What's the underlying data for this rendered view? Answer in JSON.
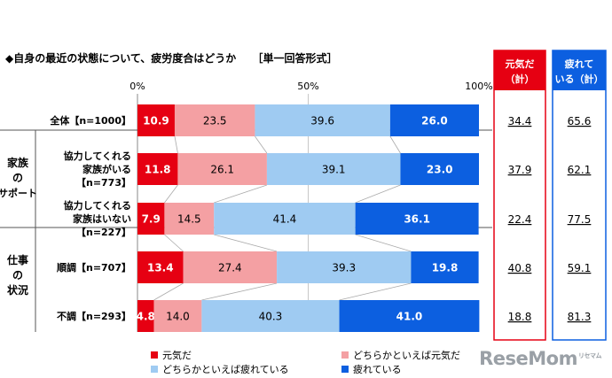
{
  "title": "◆自身の最近の状態について、疲労度合はどうか",
  "subtitle": "［単一回答形式］",
  "axis_ticks": [
    "0%",
    "50%",
    "100%"
  ],
  "summary_headers": {
    "genki": [
      "元気だ",
      "（計）"
    ],
    "tsukare": [
      "疲れて",
      "いる（計）"
    ]
  },
  "group_labels": {
    "family": [
      "家族",
      "の",
      "サポート"
    ],
    "work": [
      "仕事",
      "の",
      "状況"
    ]
  },
  "row_labels": [
    [
      "全体【n=1000】"
    ],
    [
      "協力してくれる",
      "家族がいる",
      "【n=773】"
    ],
    [
      "協力してくれる",
      "家族はいない",
      "【n=227】"
    ],
    [
      "順調【n=707】"
    ],
    [
      "不調【n=293】"
    ]
  ],
  "legend": [
    "元気だ",
    "どちらかといえば元気だ",
    "どちらかといえば疲れている",
    "疲れている"
  ],
  "colors": [
    "#e60012",
    "#f4a0a3",
    "#9fcbf2",
    "#0c5fe0"
  ],
  "chart_data": {
    "type": "bar",
    "stacked": true,
    "orientation": "horizontal",
    "xlim": [
      0,
      100
    ],
    "categories": [
      "全体【n=1000】",
      "協力してくれる家族がいる【n=773】",
      "協力してくれる家族はいない【n=227】",
      "順調【n=707】",
      "不調【n=293】"
    ],
    "series": [
      {
        "name": "元気だ",
        "values": [
          10.9,
          11.8,
          7.9,
          13.4,
          4.8
        ]
      },
      {
        "name": "どちらかといえば元気だ",
        "values": [
          23.5,
          26.1,
          14.5,
          27.4,
          14.0
        ]
      },
      {
        "name": "どちらかといえば疲れている",
        "values": [
          39.6,
          39.1,
          41.4,
          39.3,
          40.3
        ]
      },
      {
        "name": "疲れている",
        "values": [
          26.0,
          23.0,
          36.1,
          19.8,
          41.0
        ]
      }
    ],
    "genki_total": [
      "34.4",
      "37.9",
      "22.4",
      "40.8",
      "18.8"
    ],
    "tsukare_total": [
      "65.6",
      "62.1",
      "77.5",
      "59.1",
      "81.3"
    ]
  },
  "logo": {
    "text": "ReseMom",
    "sub": "リセマム"
  }
}
